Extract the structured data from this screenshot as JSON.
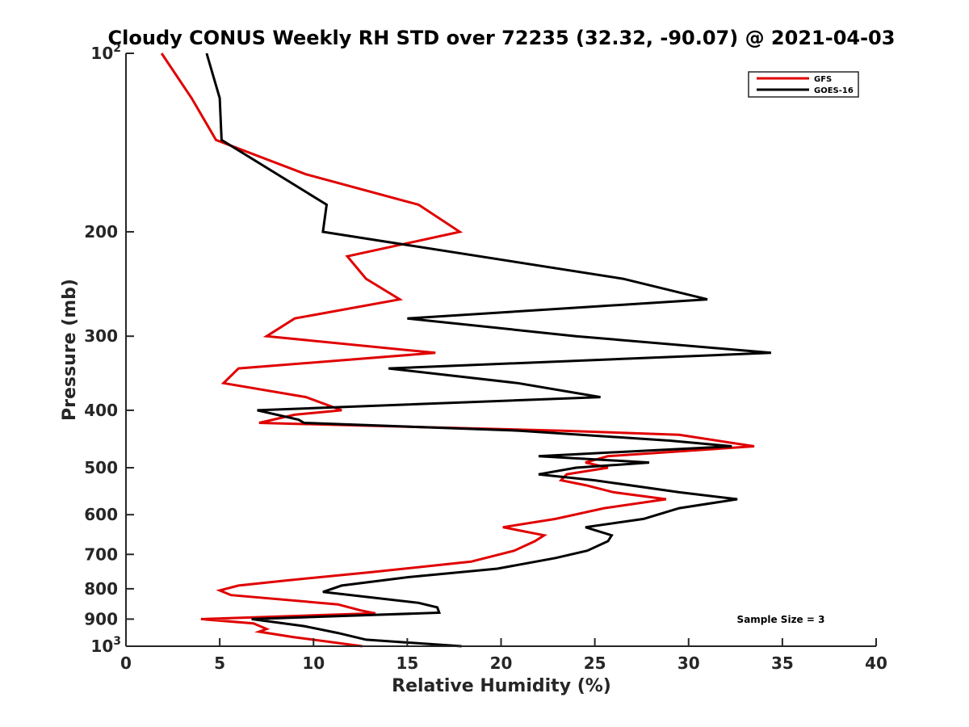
{
  "chart_data": {
    "type": "line",
    "title": "Cloudy CONUS Weekly RH STD over 72235 (32.32, -90.07) @ 2021-04-03",
    "xlabel": "Relative Humidity (%)",
    "ylabel": "Pressure (mb)",
    "xlim": [
      0,
      40
    ],
    "ylim": [
      100,
      1000
    ],
    "yscale": "log",
    "yreversed": true,
    "grid": false,
    "legend_position": "top-right",
    "x_ticks": [
      "0",
      "5",
      "10",
      "15",
      "20",
      "25",
      "30",
      "35",
      "40"
    ],
    "x_tick_values": [
      0,
      5,
      10,
      15,
      20,
      25,
      30,
      35,
      40
    ],
    "y_ticks": [
      {
        "value": 100,
        "base": "10",
        "exp": "2"
      },
      {
        "value": 200,
        "label": "200"
      },
      {
        "value": 300,
        "label": "300"
      },
      {
        "value": 400,
        "label": "400"
      },
      {
        "value": 500,
        "label": "500"
      },
      {
        "value": 600,
        "label": "600"
      },
      {
        "value": 700,
        "label": "700"
      },
      {
        "value": 800,
        "label": "800"
      },
      {
        "value": 900,
        "label": "900"
      },
      {
        "value": 1000,
        "base": "10",
        "exp": "3"
      }
    ],
    "annotation": "Sample Size = 3",
    "series": [
      {
        "name": "GFS",
        "color": "#e00000",
        "points": [
          [
            100,
            1.9
          ],
          [
            119,
            3.5
          ],
          [
            140,
            4.8
          ],
          [
            160,
            9.6
          ],
          [
            180,
            15.6
          ],
          [
            200,
            17.8
          ],
          [
            220,
            11.8
          ],
          [
            240,
            12.8
          ],
          [
            260,
            14.6
          ],
          [
            280,
            9.0
          ],
          [
            300,
            7.5
          ],
          [
            320,
            16.5
          ],
          [
            340,
            6.0
          ],
          [
            360,
            5.2
          ],
          [
            380,
            9.6
          ],
          [
            400,
            11.5
          ],
          [
            407,
            9.0
          ],
          [
            420,
            7.1
          ],
          [
            433,
            23.3
          ],
          [
            440,
            29.5
          ],
          [
            460,
            33.5
          ],
          [
            478,
            25.7
          ],
          [
            490,
            24.5
          ],
          [
            500,
            25.7
          ],
          [
            513,
            23.5
          ],
          [
            525,
            23.2
          ],
          [
            535,
            24.5
          ],
          [
            550,
            26.0
          ],
          [
            565,
            28.8
          ],
          [
            585,
            25.5
          ],
          [
            610,
            22.9
          ],
          [
            630,
            20.1
          ],
          [
            650,
            22.3
          ],
          [
            665,
            21.8
          ],
          [
            690,
            20.7
          ],
          [
            720,
            18.4
          ],
          [
            750,
            13.1
          ],
          [
            775,
            8.5
          ],
          [
            790,
            6.0
          ],
          [
            805,
            5.0
          ],
          [
            820,
            5.6
          ],
          [
            850,
            11.3
          ],
          [
            870,
            12.5
          ],
          [
            880,
            13.3
          ],
          [
            900,
            4.0
          ],
          [
            915,
            6.8
          ],
          [
            935,
            7.5
          ],
          [
            945,
            7.1
          ],
          [
            965,
            8.9
          ],
          [
            1000,
            12.6
          ]
        ]
      },
      {
        "name": "GOES-16",
        "color": "#000000",
        "points": [
          [
            100,
            4.3
          ],
          [
            119,
            5.0
          ],
          [
            140,
            5.1
          ],
          [
            180,
            10.7
          ],
          [
            200,
            10.5
          ],
          [
            240,
            26.5
          ],
          [
            260,
            31.0
          ],
          [
            280,
            15.0
          ],
          [
            300,
            24.0
          ],
          [
            320,
            34.4
          ],
          [
            340,
            14.0
          ],
          [
            360,
            20.9
          ],
          [
            380,
            25.3
          ],
          [
            400,
            7.0
          ],
          [
            415,
            9.2
          ],
          [
            420,
            9.5
          ],
          [
            433,
            21.0
          ],
          [
            450,
            29.0
          ],
          [
            460,
            32.3
          ],
          [
            478,
            22.0
          ],
          [
            490,
            27.9
          ],
          [
            500,
            24.0
          ],
          [
            513,
            22.0
          ],
          [
            525,
            25.0
          ],
          [
            550,
            29.5
          ],
          [
            565,
            32.6
          ],
          [
            585,
            29.5
          ],
          [
            610,
            27.6
          ],
          [
            630,
            24.5
          ],
          [
            650,
            25.9
          ],
          [
            665,
            25.7
          ],
          [
            690,
            24.6
          ],
          [
            710,
            22.9
          ],
          [
            740,
            19.8
          ],
          [
            765,
            15.0
          ],
          [
            790,
            11.5
          ],
          [
            810,
            10.5
          ],
          [
            845,
            15.6
          ],
          [
            860,
            16.6
          ],
          [
            878,
            16.7
          ],
          [
            900,
            6.7
          ],
          [
            925,
            9.5
          ],
          [
            950,
            11.3
          ],
          [
            975,
            12.8
          ],
          [
            1000,
            17.9
          ]
        ]
      }
    ]
  }
}
